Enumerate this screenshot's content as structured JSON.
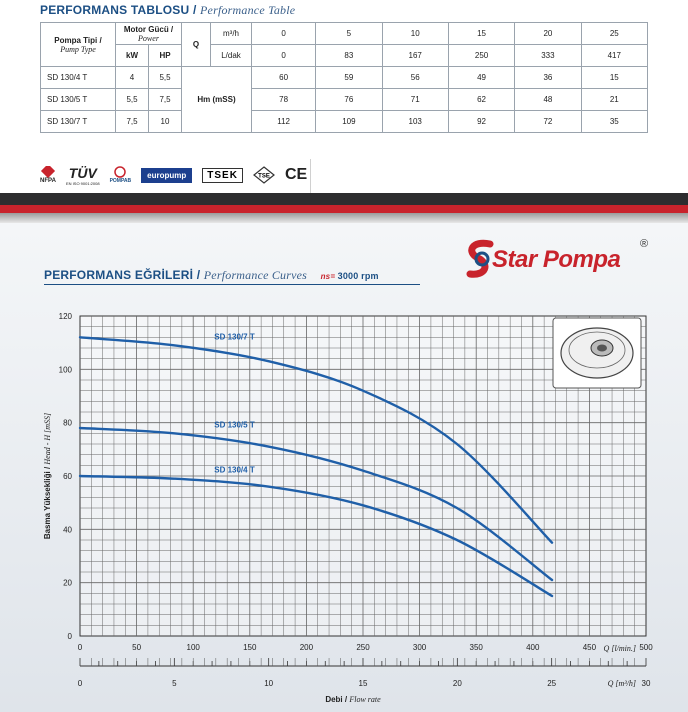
{
  "table_section": {
    "title": "PERFORMANS TABLOSU",
    "title_en": "Performance Table",
    "pump_type_label": "Pompa Tipi /",
    "pump_type_label_en": "Pump Type",
    "motor_power_label": "Motor Gücü /",
    "motor_power_label_en": "Power",
    "kw_label": "kW",
    "hp_label": "HP",
    "q_label": "Q",
    "unit_m3h": "m³/h",
    "unit_ldak": "L/dak",
    "hm_label": "Hm (mSS)",
    "q_m3h": [
      "0",
      "5",
      "10",
      "15",
      "20",
      "25"
    ],
    "q_ldak": [
      "0",
      "83",
      "167",
      "250",
      "333",
      "417"
    ],
    "rows": [
      {
        "type": "SD 130/4 T",
        "kw": "4",
        "hp": "5,5",
        "h": [
          "60",
          "59",
          "56",
          "49",
          "36",
          "15"
        ]
      },
      {
        "type": "SD 130/5 T",
        "kw": "5,5",
        "hp": "7,5",
        "h": [
          "78",
          "76",
          "71",
          "62",
          "48",
          "21"
        ]
      },
      {
        "type": "SD 130/7 T",
        "kw": "7,5",
        "hp": "10",
        "h": [
          "112",
          "109",
          "103",
          "92",
          "72",
          "35"
        ]
      }
    ]
  },
  "certifications": {
    "nfpa": "NFPA",
    "tuv": "TÜV",
    "tuv_sub": "EN ISO 9001:2008",
    "pompab": "POMPAB",
    "europump": "europump",
    "tsek": "TSEK",
    "tse": "TSE",
    "ce": "CE"
  },
  "brand": {
    "name": "Star Pompa",
    "registered": "®",
    "red": "#c8232c",
    "blue": "#1c4f84"
  },
  "curves_section": {
    "title": "PERFORMANS EĞRİLERİ",
    "title_en": "Performance Curves",
    "ns_label": "ns",
    "speed": "3000 rpm"
  },
  "chart_data": {
    "type": "line",
    "ylabel": "Basma Yüksekliği /",
    "ylabel_en": "Head - H [mSS]",
    "xlabel": "Debi /",
    "xlabel_en": "Flow rate",
    "x_unit_ldak": "Q [l/min.]",
    "x_unit_m3h": "Q [m³/h]",
    "ylim": [
      0,
      120
    ],
    "yticks": [
      "0",
      "20",
      "40",
      "60",
      "80",
      "100",
      "120"
    ],
    "xlim_ldak": [
      0,
      500
    ],
    "xticks_ldak": [
      "0",
      "50",
      "100",
      "150",
      "200",
      "250",
      "300",
      "350",
      "400",
      "450",
      "500"
    ],
    "xlim_m3h": [
      0,
      30
    ],
    "xticks_m3h": [
      "0",
      "5",
      "10",
      "15",
      "20",
      "25",
      "30"
    ],
    "grid": true,
    "series": [
      {
        "name": "SD 130/7 T",
        "x_ldak": [
          0,
          83,
          167,
          250,
          333,
          417
        ],
        "values": [
          112,
          109,
          103,
          92,
          72,
          35
        ]
      },
      {
        "name": "SD 130/5 T",
        "x_ldak": [
          0,
          83,
          167,
          250,
          333,
          417
        ],
        "values": [
          78,
          76,
          71,
          62,
          48,
          21
        ]
      },
      {
        "name": "SD 130/4 T",
        "x_ldak": [
          0,
          83,
          167,
          250,
          333,
          417
        ],
        "values": [
          60,
          59,
          56,
          49,
          36,
          15
        ]
      }
    ],
    "line_color": "#1f5fa8"
  }
}
